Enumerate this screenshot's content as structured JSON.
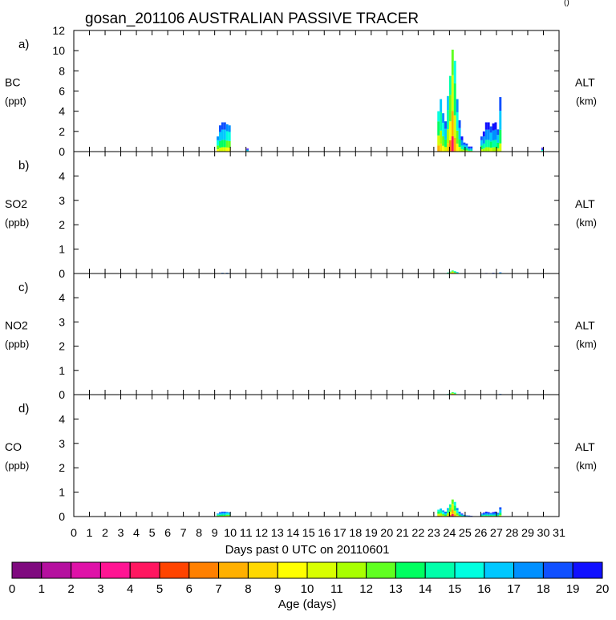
{
  "title": "gosan_201106 AUSTRALIAN PASSIVE TRACER",
  "corner_mark": "()",
  "xlabel": "Days past 0 UTC on 20110601",
  "x_ticks": [
    "0",
    "1",
    "2",
    "3",
    "4",
    "5",
    "6",
    "7",
    "8",
    "9",
    "10",
    "11",
    "12",
    "13",
    "14",
    "15",
    "16",
    "17",
    "18",
    "19",
    "20",
    "21",
    "22",
    "23",
    "24",
    "25",
    "26",
    "27",
    "28",
    "29",
    "30",
    "31"
  ],
  "colorbar": {
    "label": "Age (days)",
    "ticks": [
      "0",
      "1",
      "2",
      "3",
      "4",
      "5",
      "6",
      "7",
      "8",
      "9",
      "10",
      "11",
      "12",
      "13",
      "14",
      "15",
      "16",
      "17",
      "18",
      "19",
      "20"
    ],
    "colors": [
      "#7f0a7f",
      "#b5109f",
      "#df12a8",
      "#ff1493",
      "#ff1660",
      "#ff4400",
      "#ff8000",
      "#ffb000",
      "#ffd800",
      "#ffff00",
      "#d8ff00",
      "#a8ff00",
      "#60ff20",
      "#00ff60",
      "#00ffaa",
      "#00ffe0",
      "#00c8ff",
      "#0090ff",
      "#1050ff",
      "#1010ff",
      "#6010ff"
    ]
  },
  "chart_data": [
    {
      "type": "bar",
      "panel_label": "a)",
      "species": "BC",
      "unit": "(ppt)",
      "right_label": "ALT",
      "right_unit": "(km)",
      "ylim": [
        0,
        12
      ],
      "y_ticks": [
        "0",
        "2",
        "4",
        "6",
        "8",
        "10",
        "12"
      ],
      "x": [
        9.2,
        9.35,
        9.5,
        9.65,
        9.8,
        9.95,
        11.1,
        23.3,
        23.45,
        23.6,
        23.75,
        23.9,
        24.05,
        24.2,
        24.35,
        24.5,
        24.65,
        24.8,
        24.95,
        25.1,
        25.25,
        25.4,
        26.05,
        26.2,
        26.35,
        26.5,
        26.65,
        26.8,
        26.95,
        27.1,
        27.25,
        29.95
      ],
      "values": [
        1.5,
        2.6,
        2.9,
        2.9,
        2.7,
        2.6,
        0.3,
        4.0,
        5.2,
        3.8,
        3.0,
        5.5,
        7.5,
        10.1,
        9.0,
        5.2,
        3.1,
        1.5,
        0.9,
        0.8,
        0.5,
        0.5,
        1.5,
        2.0,
        2.9,
        2.9,
        2.5,
        2.8,
        2.9,
        2.2,
        5.4,
        0.4
      ],
      "dominant_age_days": [
        15,
        16,
        16,
        16,
        15,
        15,
        18,
        13,
        14,
        15,
        16,
        14,
        12,
        10,
        13,
        15,
        16,
        17,
        16,
        16,
        17,
        17,
        16,
        17,
        17,
        17,
        16,
        17,
        17,
        16,
        16,
        18
      ]
    },
    {
      "type": "bar",
      "panel_label": "b)",
      "species": "SO2",
      "unit": "(ppb)",
      "right_label": "ALT",
      "right_unit": "(km)",
      "ylim": [
        0,
        5
      ],
      "y_ticks": [
        "0",
        "1",
        "2",
        "3",
        "4"
      ],
      "x": [
        9.5,
        9.8,
        23.9,
        24.05,
        24.2,
        24.35,
        24.5,
        26.35,
        26.8,
        27.25
      ],
      "values": [
        0.03,
        0.03,
        0.04,
        0.08,
        0.12,
        0.1,
        0.06,
        0.02,
        0.03,
        0.05
      ],
      "dominant_age_days": [
        16,
        16,
        13,
        12,
        11,
        13,
        15,
        17,
        17,
        16
      ]
    },
    {
      "type": "bar",
      "panel_label": "c)",
      "species": "NO2",
      "unit": "(ppb)",
      "right_label": "ALT",
      "right_unit": "(km)",
      "ylim": [
        0,
        5
      ],
      "y_ticks": [
        "0",
        "1",
        "2",
        "3",
        "4"
      ],
      "x": [
        23.9,
        24.05,
        24.2,
        24.35,
        27.25
      ],
      "values": [
        0.03,
        0.06,
        0.1,
        0.08,
        0.03
      ],
      "dominant_age_days": [
        13,
        12,
        11,
        13,
        16
      ]
    },
    {
      "type": "bar",
      "panel_label": "d)",
      "species": "CO",
      "unit": "(ppb)",
      "right_label": "ALT",
      "right_unit": "(km)",
      "ylim": [
        0,
        5
      ],
      "y_ticks": [
        "0",
        "1",
        "2",
        "3",
        "4"
      ],
      "x": [
        9.2,
        9.35,
        9.5,
        9.65,
        9.8,
        9.95,
        23.3,
        23.45,
        23.6,
        23.75,
        23.9,
        24.05,
        24.2,
        24.35,
        24.5,
        24.65,
        24.8,
        24.95,
        25.1,
        25.25,
        25.4,
        26.05,
        26.2,
        26.35,
        26.5,
        26.65,
        26.8,
        26.95,
        27.1,
        27.25
      ],
      "values": [
        0.12,
        0.18,
        0.2,
        0.2,
        0.19,
        0.17,
        0.28,
        0.33,
        0.25,
        0.2,
        0.35,
        0.5,
        0.7,
        0.6,
        0.35,
        0.2,
        0.12,
        0.07,
        0.05,
        0.04,
        0.03,
        0.12,
        0.16,
        0.2,
        0.18,
        0.15,
        0.18,
        0.2,
        0.15,
        0.38
      ],
      "dominant_age_days": [
        15,
        16,
        16,
        16,
        15,
        15,
        13,
        14,
        15,
        16,
        14,
        12,
        10,
        13,
        15,
        16,
        17,
        16,
        16,
        17,
        17,
        16,
        17,
        17,
        17,
        16,
        17,
        17,
        16,
        16
      ]
    }
  ]
}
